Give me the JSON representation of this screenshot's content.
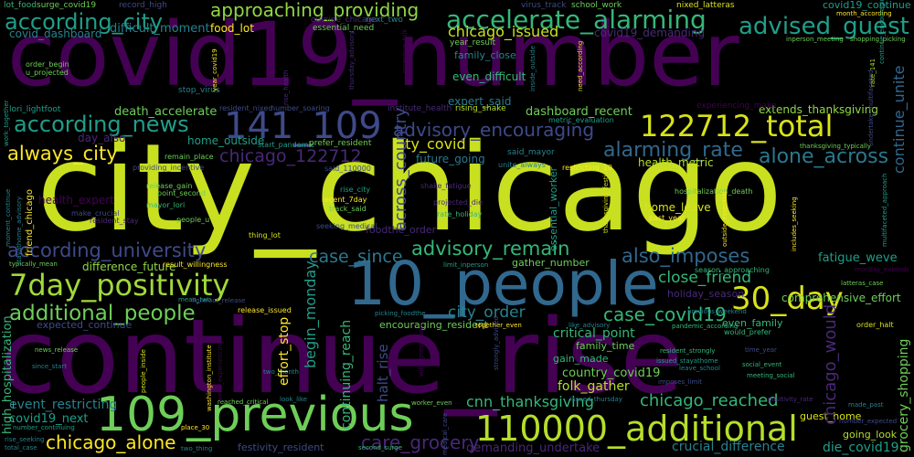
{
  "palette": {
    "background": "#000000",
    "dark_purple": "#440154",
    "purple": "#482878",
    "indigo": "#3e4a89",
    "blue": "#31688e",
    "teal": "#26828e",
    "green_teal": "#1f9e89",
    "green": "#35b779",
    "light_green": "#6ece58",
    "lime": "#b5de2b",
    "yellow": "#fde725"
  },
  "words": [
    {
      "text": "covid19_number",
      "color": "#440154"
    },
    {
      "text": "city_chicago",
      "color": "#c8e020"
    },
    {
      "text": "continue_rise",
      "color": "#440154"
    },
    {
      "text": "10_people",
      "color": "#31688e"
    },
    {
      "text": "109_previous",
      "color": "#6ece58"
    },
    {
      "text": "110000_additional",
      "color": "#b5de2b"
    },
    {
      "text": "7day_positivity",
      "color": "#a0da39"
    },
    {
      "text": "122712_total",
      "color": "#d8e219"
    },
    {
      "text": "141_109",
      "color": "#3e4a89"
    },
    {
      "text": "accelerate_alarming",
      "color": "#35b779"
    },
    {
      "text": "according_city",
      "color": "#1f9e89"
    },
    {
      "text": "according_news",
      "color": "#1f9e89"
    },
    {
      "text": "according_university",
      "color": "#3e4a89"
    },
    {
      "text": "advised_guest",
      "color": "#1f9e89"
    },
    {
      "text": "approaching_providing",
      "color": "#8fd744"
    },
    {
      "text": "additional_people",
      "color": "#6ece58"
    },
    {
      "text": "30_day",
      "color": "#d8e219"
    },
    {
      "text": "alarming_rate",
      "color": "#31688e"
    },
    {
      "text": "alone_across",
      "color": "#2a788e"
    },
    {
      "text": "advisory_encouraging",
      "color": "#3e4a89"
    },
    {
      "text": "advisory_remain",
      "color": "#35b779"
    },
    {
      "text": "also_imposes",
      "color": "#31688e"
    },
    {
      "text": "always_city",
      "color": "#fde725"
    },
    {
      "text": "case_since",
      "color": "#2a788e"
    },
    {
      "text": "case_covid19",
      "color": "#35b779"
    },
    {
      "text": "chicago_122712",
      "color": "#482878"
    },
    {
      "text": "chicago_issued",
      "color": "#c8e020"
    },
    {
      "text": "chicago_alone",
      "color": "#fde725"
    },
    {
      "text": "chicago_reached",
      "color": "#35b779"
    },
    {
      "text": "chicago_would",
      "color": "#482878"
    },
    {
      "text": "city_covid",
      "color": "#d8e219"
    },
    {
      "text": "city_order",
      "color": "#26828e"
    },
    {
      "text": "close_friend",
      "color": "#35b779"
    },
    {
      "text": "cnn_thanksgiving",
      "color": "#35b779"
    },
    {
      "text": "care_grocery",
      "color": "#482878"
    },
    {
      "text": "critical_point",
      "color": "#35b779"
    },
    {
      "text": "country_covid19",
      "color": "#6ece58"
    },
    {
      "text": "crucial_difference",
      "color": "#26828e"
    },
    {
      "text": "die_covid19",
      "color": "#1f9e89"
    },
    {
      "text": "begin_monday",
      "color": "#1f9e89"
    },
    {
      "text": "across_country",
      "color": "#3e4a89"
    },
    {
      "text": "continuing_reach",
      "color": "#35b779"
    },
    {
      "text": "comprehensive_effort",
      "color": "#6ece58"
    },
    {
      "text": "continue_unite",
      "color": "#31688e"
    },
    {
      "text": "dashboard_recent",
      "color": "#6ece58"
    },
    {
      "text": "death_accelerate",
      "color": "#6ece58"
    },
    {
      "text": "difference_future",
      "color": "#8fd744"
    },
    {
      "text": "difficult_moment",
      "color": "#26828e"
    },
    {
      "text": "covid_dashboard",
      "color": "#26828e"
    },
    {
      "text": "covid19_demanding",
      "color": "#482878"
    },
    {
      "text": "covid19_next",
      "color": "#1f9e89"
    },
    {
      "text": "covid19_continue",
      "color": "#1f9e89"
    },
    {
      "text": "day_also",
      "color": "#482878"
    },
    {
      "text": "demanding_undertake",
      "color": "#482878"
    },
    {
      "text": "effort_stop",
      "color": "#fde725"
    },
    {
      "text": "encouraging_resident",
      "color": "#6ece58"
    },
    {
      "text": "event_restricting",
      "color": "#26828e"
    },
    {
      "text": "even_difficult",
      "color": "#35b779"
    },
    {
      "text": "even_family",
      "color": "#35b779"
    },
    {
      "text": "expert_said",
      "color": "#2a788e"
    },
    {
      "text": "expected_continue",
      "color": "#3e4a89"
    },
    {
      "text": "extends_thanksgiving",
      "color": "#8fd744"
    },
    {
      "text": "family_close",
      "color": "#26828e"
    },
    {
      "text": "family_time",
      "color": "#6ece58"
    },
    {
      "text": "fatigue_weve",
      "color": "#1f9e89"
    },
    {
      "text": "festivity_resident",
      "color": "#3e4a89"
    },
    {
      "text": "folk_gather",
      "color": "#b5de2b"
    },
    {
      "text": "food_lot",
      "color": "#fde725"
    },
    {
      "text": "foodthe_order",
      "color": "#482878"
    },
    {
      "text": "gain_made",
      "color": "#35b779"
    },
    {
      "text": "gather_number",
      "color": "#6ece58"
    },
    {
      "text": "going_look",
      "color": "#b5de2b"
    },
    {
      "text": "grocery_shopping",
      "color": "#6ece58"
    },
    {
      "text": "guest_home",
      "color": "#d8e219"
    },
    {
      "text": "halt_rise",
      "color": "#3e4a89"
    },
    {
      "text": "health_expert",
      "color": "#440154"
    },
    {
      "text": "health_metric",
      "color": "#b5de2b"
    },
    {
      "text": "high_hospitalization",
      "color": "#35b779"
    },
    {
      "text": "holiday_season",
      "color": "#482878"
    },
    {
      "text": "home_leave",
      "color": "#d8e219"
    },
    {
      "text": "home_outside",
      "color": "#1f9e89"
    },
    {
      "text": "year_result",
      "color": "#6ece58"
    },
    {
      "text": "lot_food",
      "color": "#35b779"
    },
    {
      "text": "record_high",
      "color": "#3e4a89"
    },
    {
      "text": "surge_covid19",
      "color": "#6ece58"
    },
    {
      "text": "virus_track",
      "color": "#3e4a89"
    },
    {
      "text": "school_work",
      "color": "#6ece58"
    },
    {
      "text": "nixed_latteras",
      "color": "#d8e219"
    },
    {
      "text": "month_according",
      "color": "#fde725"
    },
    {
      "text": "shopping_picking",
      "color": "#6ece58"
    },
    {
      "text": "inperson_meeting",
      "color": "#6ece58"
    },
    {
      "text": "next_two",
      "color": "#26828e"
    },
    {
      "text": "outside_chicago",
      "color": "#482878"
    },
    {
      "text": "essential_need",
      "color": "#6ece58"
    },
    {
      "text": "stop_virus",
      "color": "#26828e"
    },
    {
      "text": "year_covid19",
      "color": "#fde725"
    },
    {
      "text": "resident_nixed",
      "color": "#3e4a89"
    },
    {
      "text": "number_soaring",
      "color": "#3e4a89"
    },
    {
      "text": "institute_health",
      "color": "#482878"
    },
    {
      "text": "rising_shake",
      "color": "#b5de2b"
    },
    {
      "text": "metric_evaluation",
      "color": "#1f9e89"
    },
    {
      "text": "experiencing_make",
      "color": "#440154"
    },
    {
      "text": "undertake_multifaceted",
      "color": "#3e4a89"
    },
    {
      "text": "lori_lightfoot",
      "color": "#1f9e89"
    },
    {
      "text": "order_begin",
      "color": "#6ece58"
    },
    {
      "text": "u_projected",
      "color": "#6ece58"
    },
    {
      "text": "start_pandemic",
      "color": "#1f9e89"
    },
    {
      "text": "prefer_resident",
      "color": "#6ece58"
    },
    {
      "text": "said_mayor",
      "color": "#26828e"
    },
    {
      "text": "unite_always",
      "color": "#26828e"
    },
    {
      "text": "restricting_10",
      "color": "#fde725"
    },
    {
      "text": "remain_place",
      "color": "#6ece58"
    },
    {
      "text": "providing_incentive",
      "color": "#3e4a89"
    },
    {
      "text": "said_110000",
      "color": "#3e4a89"
    },
    {
      "text": "shake_fatigue",
      "color": "#482878"
    },
    {
      "text": "future_going",
      "color": "#2a788e"
    },
    {
      "text": "release_gain",
      "color": "#6ece58"
    },
    {
      "text": "point_second",
      "color": "#6ece58"
    },
    {
      "text": "rise_city",
      "color": "#1f9e89"
    },
    {
      "text": "recent_7day",
      "color": "#fde725"
    },
    {
      "text": "track_said",
      "color": "#6ece58"
    },
    {
      "text": "projected_die",
      "color": "#482878"
    },
    {
      "text": "rate_holiday",
      "color": "#35b779"
    },
    {
      "text": "mayor_lori",
      "color": "#35b779"
    },
    {
      "text": "make_crucial",
      "color": "#3e4a89"
    },
    {
      "text": "resident_stay",
      "color": "#482878"
    },
    {
      "text": "people_u",
      "color": "#6ece58"
    },
    {
      "text": "thing_lot",
      "color": "#d8e219"
    },
    {
      "text": "seeking_medical",
      "color": "#3e4a89"
    },
    {
      "text": "hospitalization_death",
      "color": "#6ece58"
    },
    {
      "text": "outside_essential",
      "color": "#fde725"
    },
    {
      "text": "past_year",
      "color": "#fde725"
    },
    {
      "text": "season_approaching",
      "color": "#35b779"
    },
    {
      "text": "monday_extends",
      "color": "#440154"
    },
    {
      "text": "typically_mean",
      "color": "#6ece58"
    },
    {
      "text": "result_willingness",
      "color": "#fde725"
    },
    {
      "text": "limit_inperson",
      "color": "#1f9e89"
    },
    {
      "text": "latteras_case",
      "color": "#6ece58"
    },
    {
      "text": "lightfoot_release",
      "color": "#3e4a89"
    },
    {
      "text": "release_issued",
      "color": "#fde725"
    },
    {
      "text": "mean_two",
      "color": "#1f9e89"
    },
    {
      "text": "previous_weekend",
      "color": "#26828e"
    },
    {
      "text": "would_prefer",
      "color": "#35b779"
    },
    {
      "text": "order_halt",
      "color": "#d8e219"
    },
    {
      "text": "picking_foodthe",
      "color": "#26828e"
    },
    {
      "text": "together_even",
      "color": "#fde725"
    },
    {
      "text": "like_advisory",
      "color": "#26828e"
    },
    {
      "text": "pandemic_according",
      "color": "#35b779"
    },
    {
      "text": "news_release",
      "color": "#6ece58"
    },
    {
      "text": "since_start",
      "color": "#26828e"
    },
    {
      "text": "two_month",
      "color": "#26828e"
    },
    {
      "text": "resident_strongly",
      "color": "#35b779"
    },
    {
      "text": "issued_stayathome",
      "color": "#1f9e89"
    },
    {
      "text": "leave_school",
      "color": "#26828e"
    },
    {
      "text": "imposes_limit",
      "color": "#3e4a89"
    },
    {
      "text": "time_year",
      "color": "#3e4a89"
    },
    {
      "text": "social_event",
      "color": "#35b779"
    },
    {
      "text": "meeting_social",
      "color": "#35b779"
    },
    {
      "text": "positivity_rate",
      "color": "#482878"
    },
    {
      "text": "made_past",
      "color": "#26828e"
    },
    {
      "text": "number_expected",
      "color": "#3e4a89"
    },
    {
      "text": "reached_critical",
      "color": "#6ece58"
    },
    {
      "text": "look_like",
      "color": "#26828e"
    },
    {
      "text": "worker_even",
      "color": "#6ece58"
    },
    {
      "text": "issued_thursday",
      "color": "#26828e"
    },
    {
      "text": "place_30",
      "color": "#fde725"
    },
    {
      "text": "number_continuing",
      "color": "#1f9e89"
    },
    {
      "text": "rise_seeking",
      "color": "#26828e"
    },
    {
      "text": "total_case",
      "color": "#26828e"
    },
    {
      "text": "two_thing",
      "color": "#26828e"
    },
    {
      "text": "second_surge",
      "color": "#35b779"
    },
    {
      "text": "stayathome_advisory",
      "color": "#26828e"
    },
    {
      "text": "friend_chicago",
      "color": "#fde725"
    },
    {
      "text": "moment_continue",
      "color": "#26828e"
    },
    {
      "text": "washington_institute",
      "color": "#fde725"
    },
    {
      "text": "weve_experiencing",
      "color": "#440154"
    },
    {
      "text": "people_inside",
      "color": "#d8e219"
    },
    {
      "text": "strongly_advised",
      "color": "#3e4a89"
    },
    {
      "text": "willingness_work",
      "color": "#440154"
    },
    {
      "text": "medical_care",
      "color": "#3e4a89"
    },
    {
      "text": "need_according",
      "color": "#d8e219"
    },
    {
      "text": "inside_outside",
      "color": "#26828e"
    },
    {
      "text": "incentive_folk",
      "color": "#440154"
    },
    {
      "text": "rise_health",
      "color": "#482878"
    },
    {
      "text": "thanksgiving_festivity",
      "color": "#d8e219"
    },
    {
      "text": "essential_worker",
      "color": "#1f9e89"
    },
    {
      "text": "thanksgiving_typically",
      "color": "#fde725"
    },
    {
      "text": "includes_seeking",
      "color": "#6ece58"
    },
    {
      "text": "rate_141",
      "color": "#b5de2b"
    },
    {
      "text": "thursday_advisory",
      "color": "#482878"
    },
    {
      "text": "continue_encouraging",
      "color": "#1f9e89"
    },
    {
      "text": "multifaceted_approach",
      "color": "#1f9e89"
    },
    {
      "text": "work_together",
      "color": "#1f9e89"
    }
  ]
}
